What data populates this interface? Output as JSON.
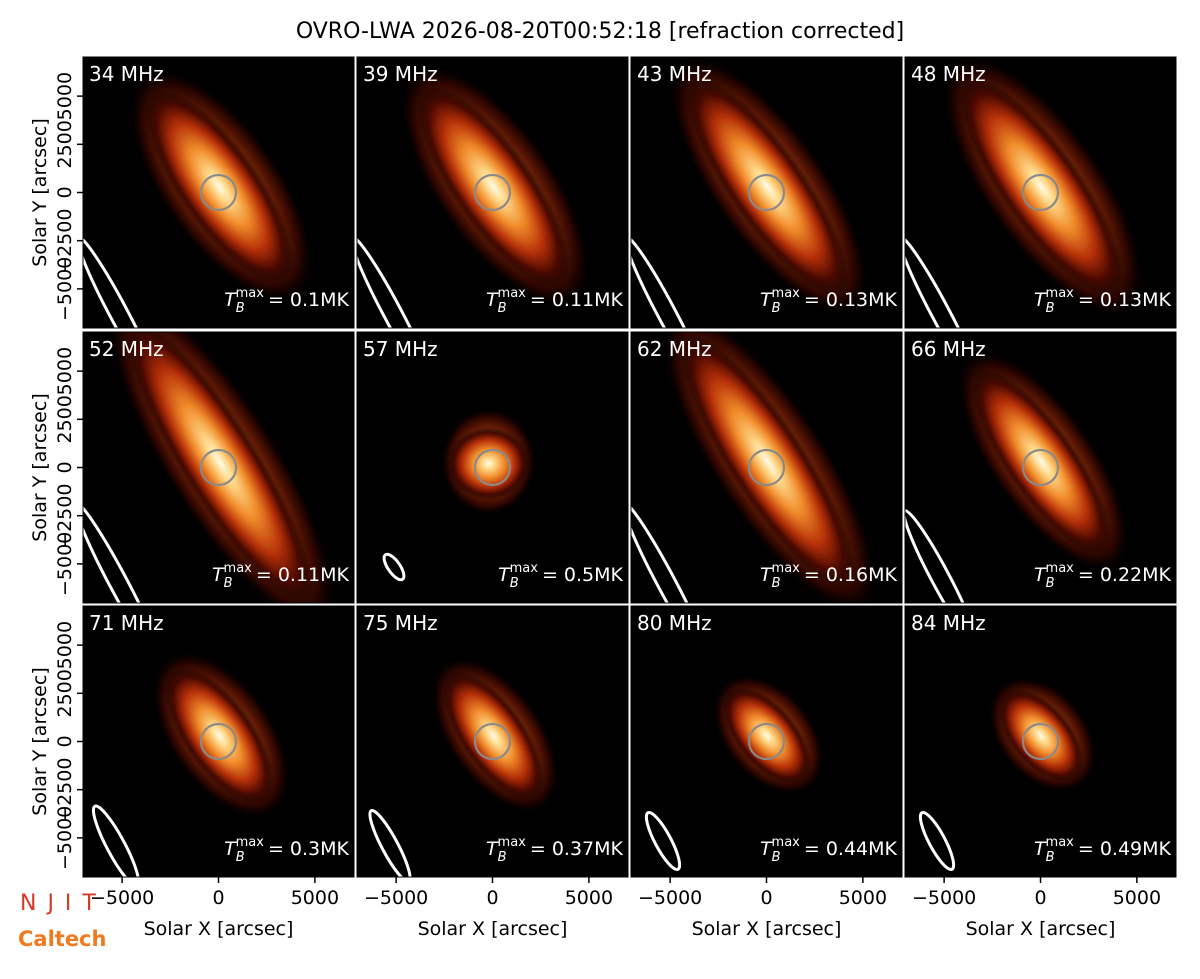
{
  "title": "OVRO-LWA 2026-08-20T00:52:18 [refraction corrected]",
  "logos": [
    "N J I T",
    "Caltech"
  ],
  "chart_data": [
    {
      "type": "image",
      "title": "34 MHz",
      "annotation": {
        "symbol": "T",
        "sub": "B",
        "sup": "max",
        "text": "= 0.1MK"
      },
      "xlim": [
        -7030,
        7030
      ],
      "ylim": [
        -7030,
        7030
      ],
      "ylabel": "Solar Y [arcsec]",
      "yticks": [
        {
          "value": -5000,
          "label": "−5000"
        },
        {
          "value": -2500,
          "label": "−2500"
        },
        0,
        2500,
        5000
      ]
    },
    {
      "type": "image",
      "title": "39 MHz",
      "annotation": {
        "symbol": "T",
        "sub": "B",
        "sup": "max",
        "text": "= 0.11MK"
      },
      "xlim": [
        -7030,
        7030
      ],
      "ylim": [
        -7030,
        7030
      ]
    },
    {
      "type": "image",
      "title": "43 MHz",
      "annotation": {
        "symbol": "T",
        "sub": "B",
        "sup": "max",
        "text": "= 0.13MK"
      },
      "xlim": [
        -7030,
        7030
      ],
      "ylim": [
        -7030,
        7030
      ]
    },
    {
      "type": "image",
      "title": "48 MHz",
      "annotation": {
        "symbol": "T",
        "sub": "B",
        "sup": "max",
        "text": "= 0.13MK"
      },
      "xlim": [
        -7030,
        7030
      ],
      "ylim": [
        -7030,
        7030
      ]
    },
    {
      "type": "image",
      "title": "52 MHz",
      "annotation": {
        "symbol": "T",
        "sub": "B",
        "sup": "max",
        "text": "= 0.11MK"
      },
      "xlim": [
        -7030,
        7030
      ],
      "ylim": [
        -7030,
        7030
      ],
      "ylabel": "Solar Y [arcsec]",
      "yticks": [
        {
          "value": -5000,
          "label": "−5000"
        },
        {
          "value": -2500,
          "label": "−2500"
        },
        0,
        2500,
        5000
      ]
    },
    {
      "type": "image",
      "title": "57 MHz",
      "annotation": {
        "symbol": "T",
        "sub": "B",
        "sup": "max",
        "text": "= 0.5MK"
      },
      "xlim": [
        -7030,
        7030
      ],
      "ylim": [
        -7030,
        7030
      ]
    },
    {
      "type": "image",
      "title": "62 MHz",
      "annotation": {
        "symbol": "T",
        "sub": "B",
        "sup": "max",
        "text": "= 0.16MK"
      },
      "xlim": [
        -7030,
        7030
      ],
      "ylim": [
        -7030,
        7030
      ]
    },
    {
      "type": "image",
      "title": "66 MHz",
      "annotation": {
        "symbol": "T",
        "sub": "B",
        "sup": "max",
        "text": "= 0.22MK"
      },
      "xlim": [
        -7030,
        7030
      ],
      "ylim": [
        -7030,
        7030
      ]
    },
    {
      "type": "image",
      "title": "71 MHz",
      "annotation": {
        "symbol": "T",
        "sub": "B",
        "sup": "max",
        "text": "= 0.3MK"
      },
      "xlim": [
        -7030,
        7030
      ],
      "ylim": [
        -7030,
        7030
      ],
      "ylabel": "Solar Y [arcsec]",
      "yticks": [
        {
          "value": -5000,
          "label": "−5000"
        },
        {
          "value": -2500,
          "label": "−2500"
        },
        0,
        2500,
        5000
      ],
      "xlabel": "Solar X [arcsec]",
      "xticks": [
        {
          "value": -5000,
          "label": "−5000"
        },
        0,
        5000
      ]
    },
    {
      "type": "image",
      "title": "75 MHz",
      "annotation": {
        "symbol": "T",
        "sub": "B",
        "sup": "max",
        "text": "= 0.37MK"
      },
      "xlim": [
        -7030,
        7030
      ],
      "ylim": [
        -7030,
        7030
      ],
      "xlabel": "Solar X [arcsec]",
      "xticks": [
        {
          "value": -5000,
          "label": "−5000"
        },
        0,
        5000
      ]
    },
    {
      "type": "image",
      "title": "80 MHz",
      "annotation": {
        "symbol": "T",
        "sub": "B",
        "sup": "max",
        "text": "= 0.44MK"
      },
      "xlim": [
        -7030,
        7030
      ],
      "ylim": [
        -7030,
        7030
      ],
      "xlabel": "Solar X [arcsec]",
      "xticks": [
        {
          "value": -5000,
          "label": "−5000"
        },
        0,
        5000
      ]
    },
    {
      "type": "image",
      "title": "84 MHz",
      "annotation": {
        "symbol": "T",
        "sub": "B",
        "sup": "max",
        "text": "= 0.49MK"
      },
      "xlim": [
        -7030,
        7030
      ],
      "ylim": [
        -7030,
        7030
      ],
      "xlabel": "Solar X [arcsec]",
      "xticks": [
        {
          "value": -5000,
          "label": "−5000"
        },
        0,
        5000
      ]
    }
  ]
}
